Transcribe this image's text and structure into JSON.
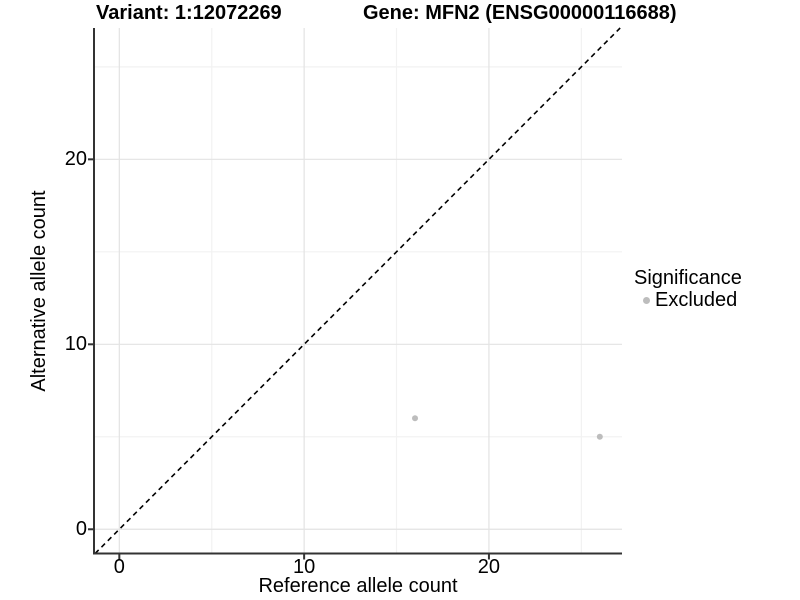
{
  "header": {
    "variant_title": "Variant: 1:12072269",
    "gene_title": "Gene: MFN2 (ENSG00000116688)"
  },
  "legend": {
    "title": "Significance",
    "items": [
      {
        "label": "Excluded",
        "color": "#bdbdbd"
      }
    ]
  },
  "colors": {
    "grid_major": "#e3e3e3",
    "grid_minor": "#f2f2f2",
    "axis_line": "#333333",
    "tick_mark": "#333333",
    "text": "#000000",
    "point": "#bdbdbd",
    "reference_line": "#000000",
    "background": "#ffffff"
  },
  "chart_data": {
    "type": "scatter",
    "title_left": "Variant: 1:12072269",
    "title_right": "Gene: MFN2 (ENSG00000116688)",
    "xlabel": "Reference allele count",
    "ylabel": "Alternative allele count",
    "xlim": [
      -1.37,
      27.2
    ],
    "ylim": [
      -1.31,
      27.1
    ],
    "x_ticks_major": [
      0,
      10,
      20
    ],
    "x_ticks_minor": [
      5,
      15,
      25
    ],
    "y_ticks_major": [
      0,
      10,
      20
    ],
    "y_ticks_minor": [
      5,
      15,
      25
    ],
    "grid": true,
    "aspect": "equal",
    "legend_position": "right",
    "reference_line": {
      "type": "identity",
      "equation": "y = x",
      "style": "dashed"
    },
    "series": [
      {
        "name": "Excluded",
        "color": "#bdbdbd",
        "marker": "circle",
        "points": [
          {
            "x": 16,
            "y": 6
          },
          {
            "x": 26,
            "y": 5
          }
        ]
      }
    ]
  }
}
